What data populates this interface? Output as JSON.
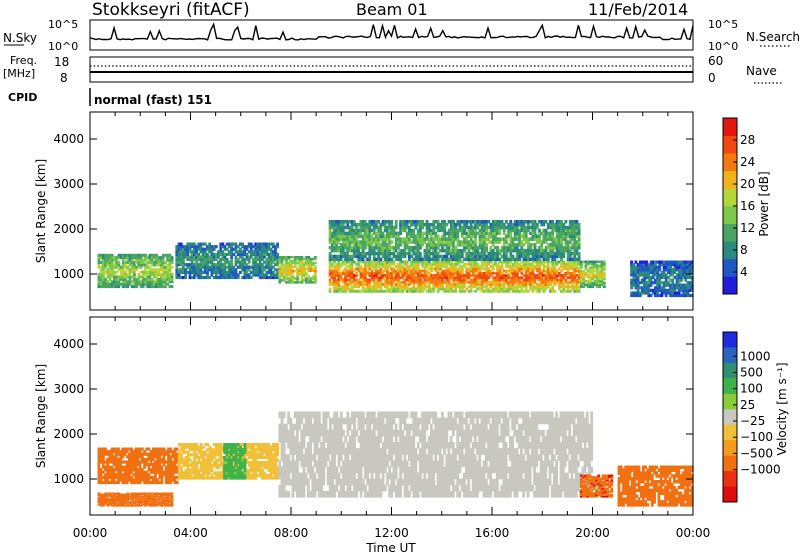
{
  "header": {
    "station": "Stokkseyri (fitACF)",
    "beam": "Beam 01",
    "date": "11/Feb/2014"
  },
  "top_panels": {
    "nsky_label": "N.Sky",
    "nsky_ticks": [
      "10^5",
      "10^0"
    ],
    "nsearch_label": "N.Search",
    "nsearch_ticks": [
      "10^5",
      "10^0"
    ],
    "freq_label": "Freq.",
    "freq_unit": "[MHz]",
    "freq_ticks": [
      "18",
      "8"
    ],
    "nave_label": "Nave",
    "nave_ticks": [
      "60",
      "0"
    ],
    "cpid_label": "CPID",
    "cpid_value": "normal (fast) 151"
  },
  "colors": {
    "power_scale": [
      "#1e1edc",
      "#1f57c4",
      "#2a8a7e",
      "#4aa564",
      "#7cc84a",
      "#b4d83c",
      "#f0b31e",
      "#f47a10",
      "#f04a10",
      "#e01810"
    ],
    "velocity_scale": [
      "#1e2adc",
      "#2a64be",
      "#2f8f6e",
      "#40b24a",
      "#88cc3a",
      "#c8c8c0",
      "#f0c038",
      "#f59a1c",
      "#f07012",
      "#e83212",
      "#e00c0c"
    ]
  },
  "chart_data": [
    {
      "type": "heatmap",
      "name": "power-panel",
      "ylabel": "Slant Range [km]",
      "y_ticks": [
        "1000",
        "2000",
        "3000",
        "4000"
      ],
      "ylim": [
        200,
        4600
      ],
      "xlim": [
        0,
        24
      ],
      "colorbar": {
        "label": "Power [dB]",
        "ticks": [
          "4",
          "8",
          "12",
          "16",
          "20",
          "24",
          "28"
        ],
        "range": [
          0,
          32
        ]
      },
      "features": [
        {
          "t0": 0.3,
          "t1": 3.3,
          "r0": 700,
          "r1": 1450,
          "value": 18
        },
        {
          "t0": 3.4,
          "t1": 7.5,
          "r0": 900,
          "r1": 1700,
          "value": 10
        },
        {
          "t0": 7.5,
          "t1": 9.0,
          "r0": 800,
          "r1": 1400,
          "value": 22
        },
        {
          "t0": 9.5,
          "t1": 19.5,
          "r0": 600,
          "r1": 1300,
          "value": 28
        },
        {
          "t0": 9.5,
          "t1": 19.5,
          "r0": 1300,
          "r1": 2200,
          "value": 14
        },
        {
          "t0": 19.5,
          "t1": 20.5,
          "r0": 700,
          "r1": 1300,
          "value": 20
        },
        {
          "t0": 21.5,
          "t1": 24.0,
          "r0": 500,
          "r1": 1300,
          "value": 8
        }
      ]
    },
    {
      "type": "heatmap",
      "name": "velocity-panel",
      "ylabel": "Slant Range [km]",
      "xlabel": "Time UT",
      "y_ticks": [
        "1000",
        "2000",
        "3000",
        "4000"
      ],
      "x_ticks": [
        "00:00",
        "04:00",
        "08:00",
        "12:00",
        "16:00",
        "20:00",
        "00:00"
      ],
      "ylim": [
        200,
        4600
      ],
      "xlim": [
        0,
        24
      ],
      "colorbar": {
        "label": "Velocity [m s⁻¹]",
        "ticks": [
          "1000",
          "500",
          "100",
          "25",
          "−25",
          "−100",
          "−500",
          "−1000"
        ]
      },
      "features": [
        {
          "t0": 0.3,
          "t1": 3.5,
          "r0": 900,
          "r1": 1700,
          "value": -200
        },
        {
          "t0": 3.5,
          "t1": 7.5,
          "r0": 1000,
          "r1": 1800,
          "value": -60
        },
        {
          "t0": 5.3,
          "t1": 6.2,
          "r0": 1000,
          "r1": 1800,
          "value": 150
        },
        {
          "t0": 7.5,
          "t1": 20.0,
          "r0": 600,
          "r1": 2500,
          "value": 0
        },
        {
          "t0": 19.5,
          "t1": 20.8,
          "r0": 600,
          "r1": 1100,
          "value": -400
        },
        {
          "t0": 21.0,
          "t1": 24.0,
          "r0": 400,
          "r1": 1300,
          "value": -300
        },
        {
          "t0": 0.3,
          "t1": 3.3,
          "r0": 400,
          "r1": 700,
          "value": -300
        }
      ]
    }
  ]
}
